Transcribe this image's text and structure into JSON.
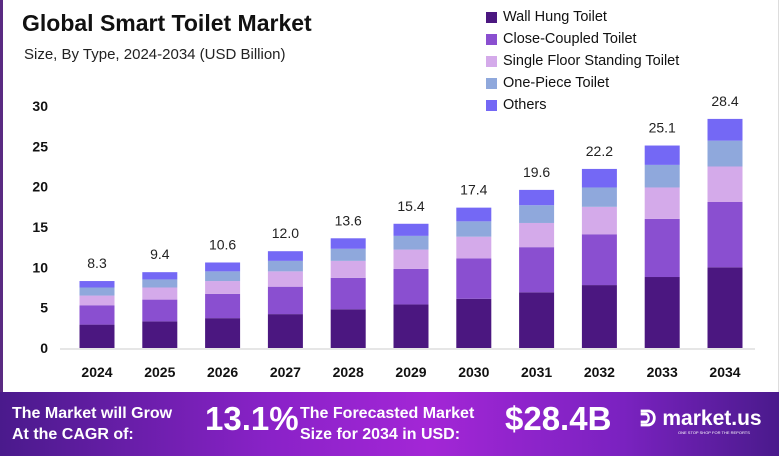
{
  "chart_data": {
    "type": "stacked-bar",
    "title": "Global Smart Toilet Market",
    "subtitle": "Size, By Type, 2024-2034 (USD Billion)",
    "categories": [
      "2024",
      "2025",
      "2026",
      "2027",
      "2028",
      "2029",
      "2030",
      "2031",
      "2032",
      "2033",
      "2034"
    ],
    "totals": [
      "8.3",
      "9.4",
      "10.6",
      "12.0",
      "13.6",
      "15.4",
      "17.4",
      "19.6",
      "22.2",
      "25.1",
      "28.4"
    ],
    "series": [
      {
        "name": "Wall Hung Toilet",
        "color": "#4b1780",
        "values": [
          2.9,
          3.3,
          3.7,
          4.2,
          4.8,
          5.4,
          6.1,
          6.9,
          7.8,
          8.8,
          10.0
        ]
      },
      {
        "name": "Close-Coupled Toilet",
        "color": "#8a4fd0",
        "values": [
          2.4,
          2.7,
          3.0,
          3.4,
          3.9,
          4.4,
          5.0,
          5.6,
          6.3,
          7.2,
          8.1
        ]
      },
      {
        "name": "Single Floor Standing Toilet",
        "color": "#d4aaea",
        "values": [
          1.2,
          1.5,
          1.6,
          1.9,
          2.1,
          2.4,
          2.7,
          3.0,
          3.4,
          3.9,
          4.4
        ]
      },
      {
        "name": "One-Piece Toilet",
        "color": "#8fa8dc",
        "values": [
          1.0,
          1.0,
          1.2,
          1.3,
          1.5,
          1.7,
          1.9,
          2.2,
          2.4,
          2.8,
          3.2
        ]
      },
      {
        "name": "Others",
        "color": "#7468f5",
        "values": [
          0.8,
          0.9,
          1.1,
          1.2,
          1.3,
          1.5,
          1.7,
          1.9,
          2.3,
          2.4,
          2.7
        ]
      }
    ],
    "yticks": [
      "0",
      "5",
      "10",
      "15",
      "20",
      "25",
      "30"
    ],
    "ylim": [
      0,
      30
    ],
    "grid": false,
    "legend": "top-right"
  },
  "footer": {
    "cagr_label_1": "The Market will Grow",
    "cagr_label_2": "At the CAGR of:",
    "cagr_value": "13.1%",
    "forecast_label_1": "The Forecasted Market",
    "forecast_label_2": "Size for 2034 in USD:",
    "forecast_value": "$28.4B",
    "brand": "market.us",
    "brand_tagline": "ONE STOP SHOP FOR THE REPORTS"
  }
}
